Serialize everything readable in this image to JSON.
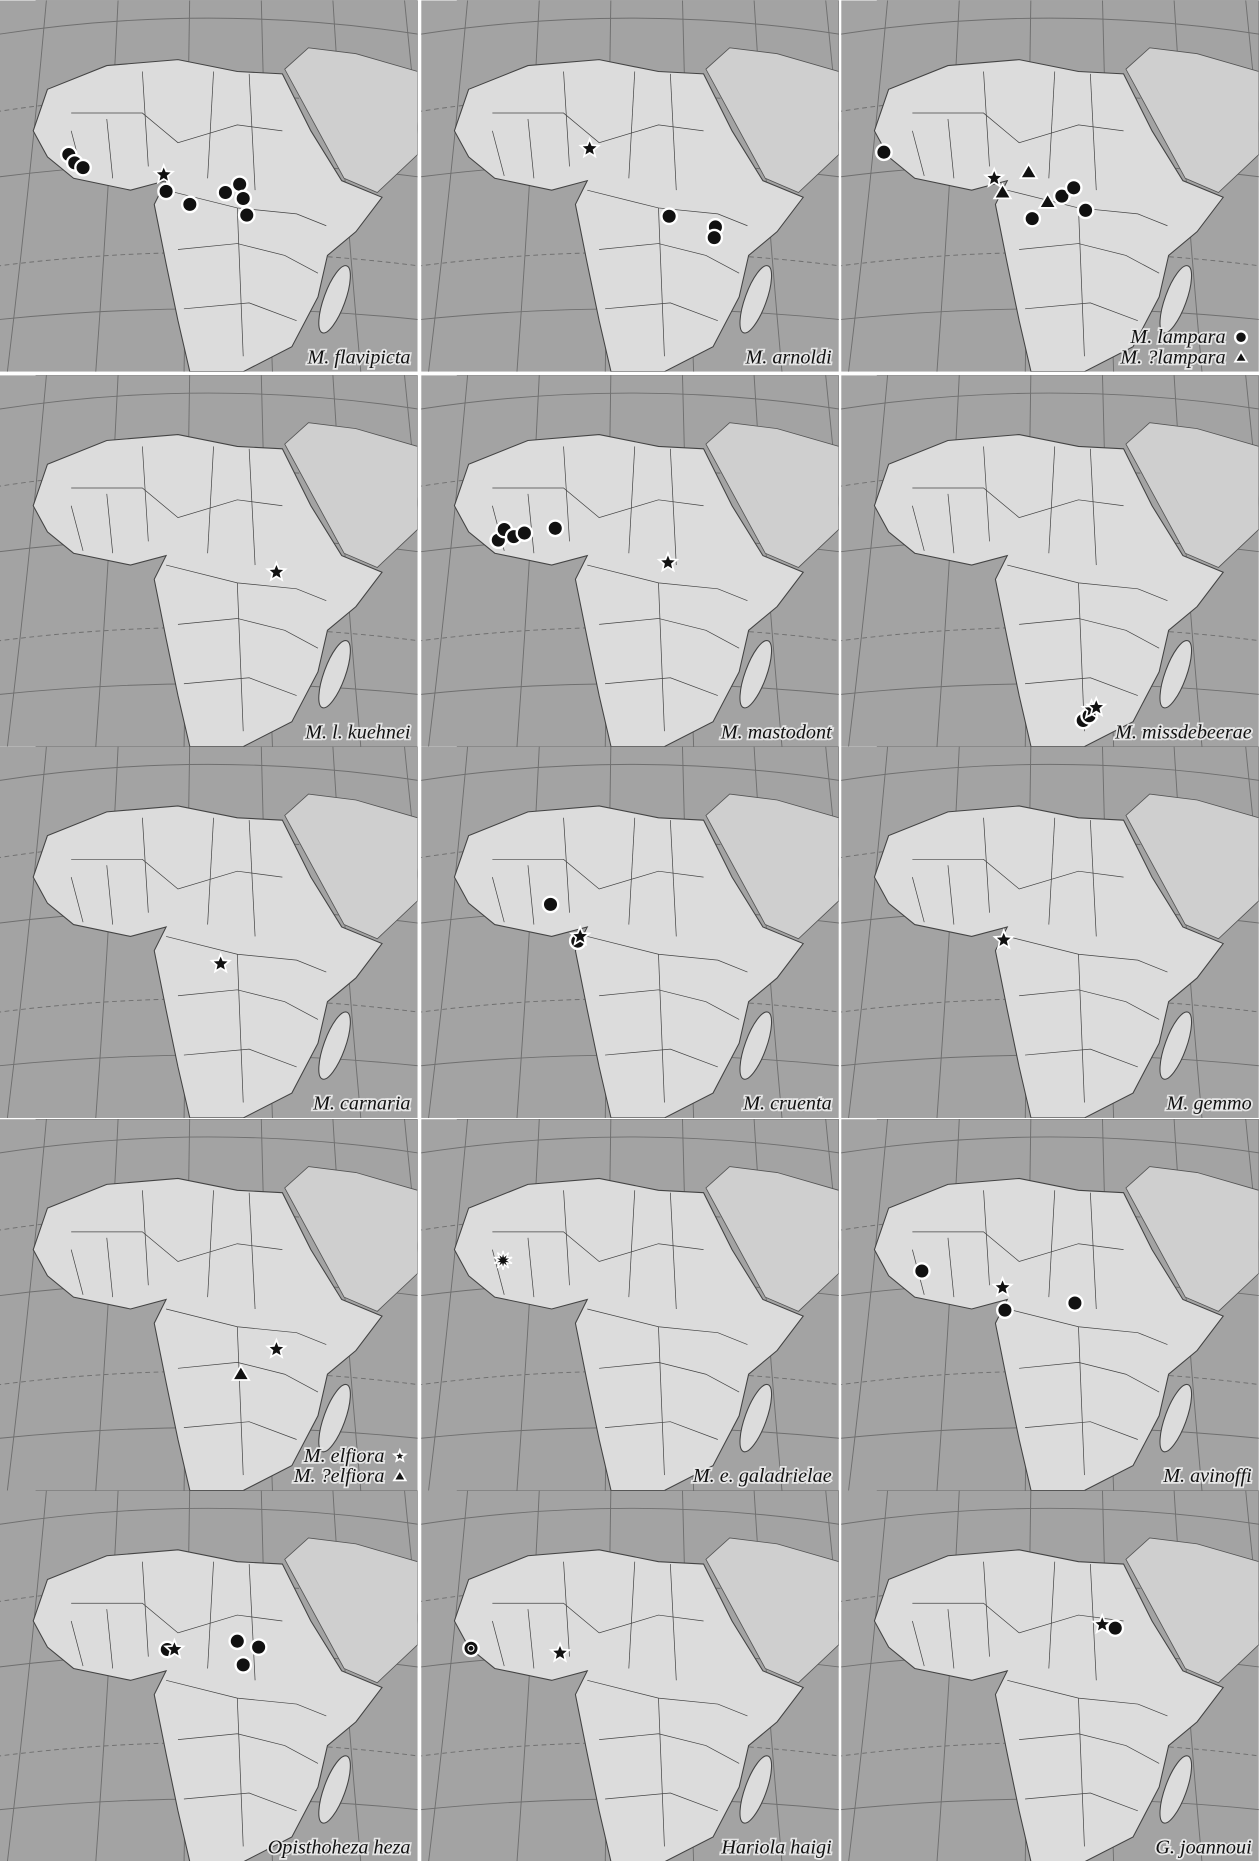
{
  "panels": [
    {
      "labels": [
        "M. flavipicta"
      ]
    },
    {
      "labels": [
        "M. arnoldi"
      ]
    },
    {
      "labels": [
        "M. lampara",
        "M. ?lampara"
      ]
    },
    {
      "labels": [
        "M. l. kuehnei"
      ]
    },
    {
      "labels": [
        "M. mastodont"
      ]
    },
    {
      "labels": [
        "M. missdebeerae"
      ]
    },
    {
      "labels": [
        "M. carnaria"
      ]
    },
    {
      "labels": [
        "M. cruenta"
      ]
    },
    {
      "labels": [
        "M. gemmo"
      ]
    },
    {
      "labels": [
        "M. elfiora",
        "M. ?elfiora"
      ]
    },
    {
      "labels": [
        "M. e. galadrielae"
      ]
    },
    {
      "labels": [
        "M. avinoffi"
      ]
    },
    {
      "labels": [
        "Opisthoheza heza"
      ]
    },
    {
      "labels": [
        "Hariola haigi"
      ]
    },
    {
      "labels": [
        "G. joannoui"
      ]
    }
  ]
}
